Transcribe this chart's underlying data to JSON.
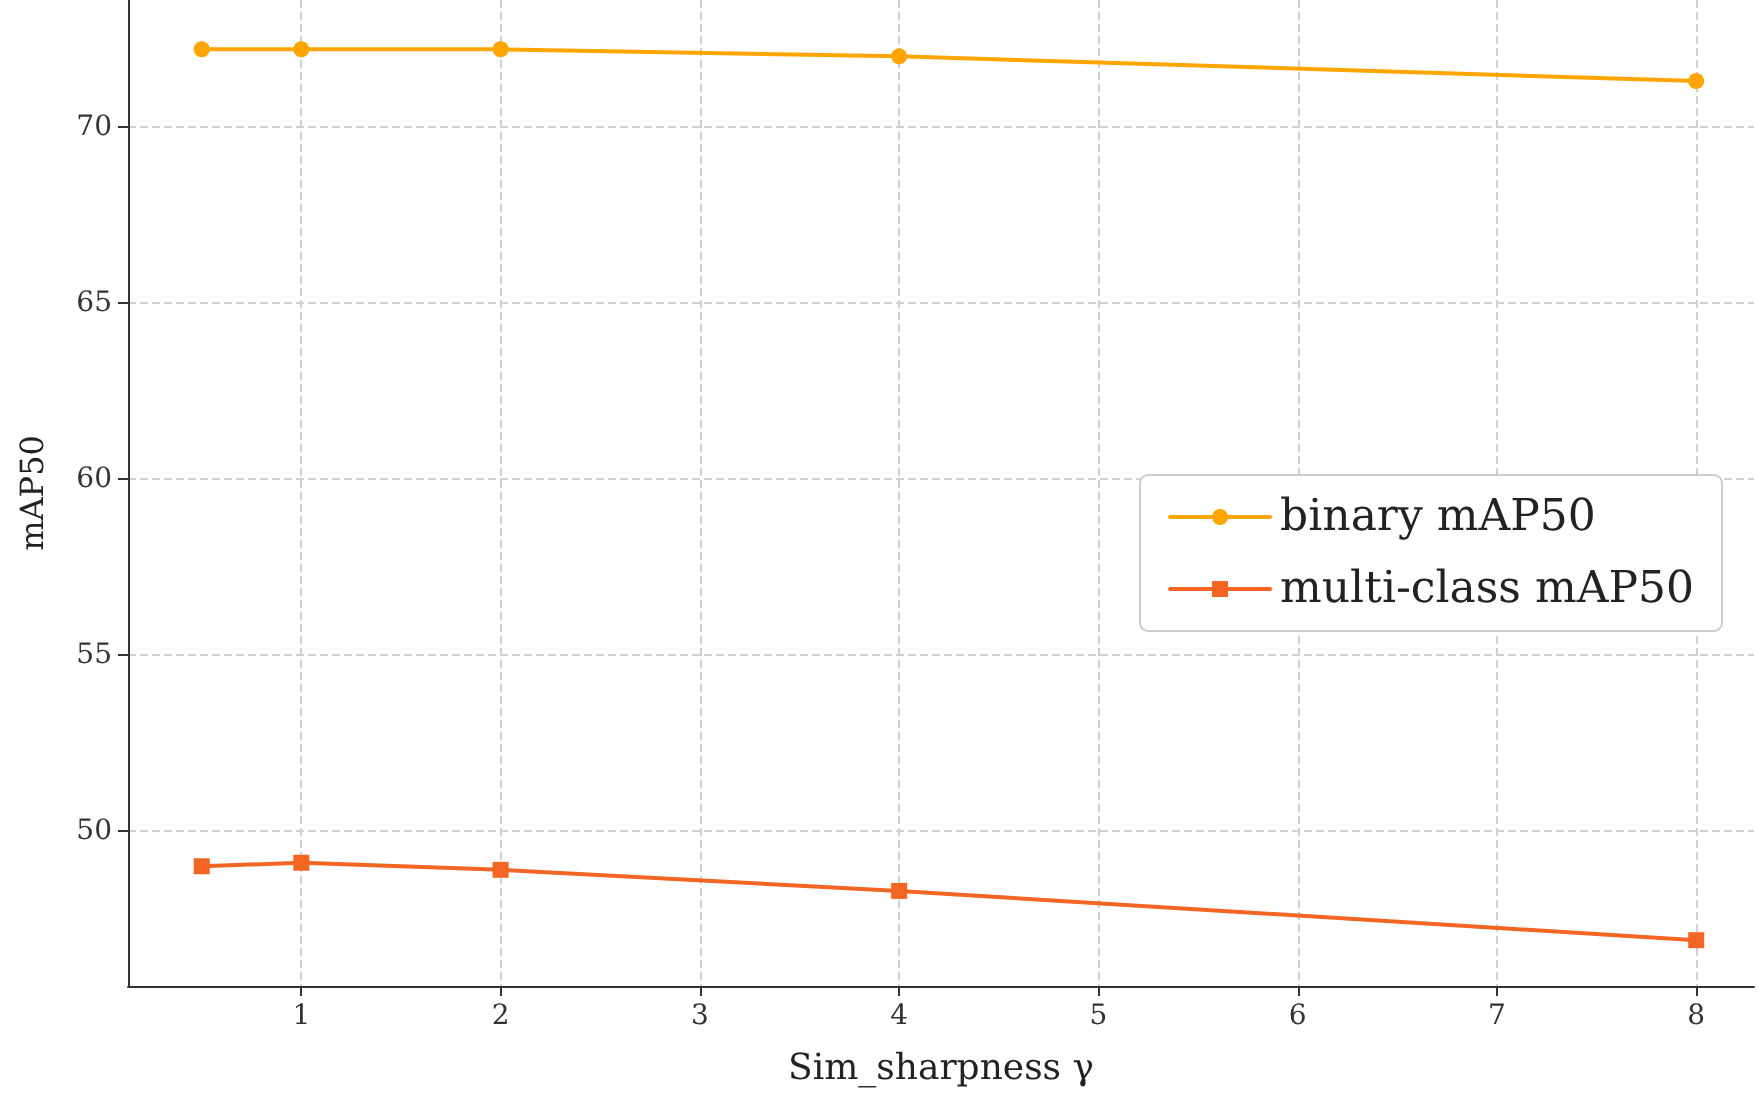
{
  "chart_data": {
    "type": "line",
    "xlabel": "Sim_sharpness γ",
    "ylabel": "mAP50",
    "x": [
      0.5,
      1,
      2,
      4,
      8
    ],
    "series": [
      {
        "name": "binary mAP50",
        "color": "#ffa500",
        "marker": "circle",
        "values": [
          72.2,
          72.2,
          72.2,
          72.0,
          71.3
        ]
      },
      {
        "name": "multi-class mAP50",
        "color": "#f26522",
        "marker": "square",
        "values": [
          49.0,
          49.1,
          48.9,
          48.3,
          46.9
        ]
      }
    ],
    "xlim": [
      0.13,
      8.29
    ],
    "xticks": [
      1,
      2,
      3,
      4,
      5,
      6,
      7,
      8
    ],
    "ylim": [
      45.6,
      73.6
    ],
    "yticks": [
      50,
      55,
      60,
      65,
      70
    ],
    "grid": true,
    "legend": "right",
    "line_style": "solid"
  }
}
